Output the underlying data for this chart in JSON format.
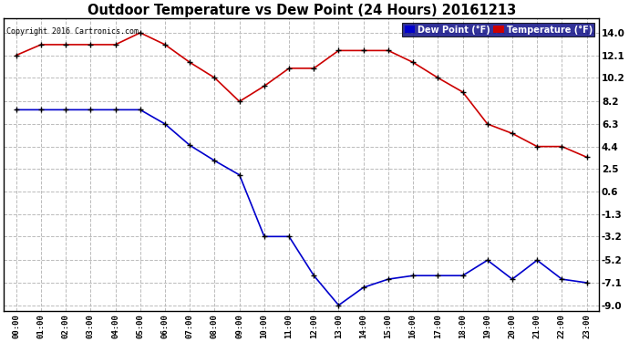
{
  "title": "Outdoor Temperature vs Dew Point (24 Hours) 20161213",
  "copyright": "Copyright 2016 Cartronics.com",
  "x_labels": [
    "00:00",
    "01:00",
    "02:00",
    "03:00",
    "04:00",
    "05:00",
    "06:00",
    "07:00",
    "08:00",
    "09:00",
    "10:00",
    "11:00",
    "12:00",
    "13:00",
    "14:00",
    "15:00",
    "16:00",
    "17:00",
    "18:00",
    "19:00",
    "20:00",
    "21:00",
    "22:00",
    "23:00"
  ],
  "temperature": [
    12.1,
    13.0,
    13.0,
    13.0,
    13.0,
    14.0,
    13.0,
    11.5,
    10.2,
    8.2,
    9.5,
    11.0,
    11.0,
    12.5,
    12.5,
    12.5,
    11.5,
    10.2,
    9.0,
    6.3,
    5.5,
    4.4,
    4.4,
    3.5
  ],
  "dew_point": [
    7.5,
    7.5,
    7.5,
    7.5,
    7.5,
    7.5,
    6.3,
    4.5,
    3.2,
    2.0,
    -3.2,
    -3.2,
    -6.5,
    -9.0,
    -7.5,
    -6.8,
    -6.5,
    -6.5,
    -6.5,
    -5.2,
    -6.8,
    -5.2,
    -6.8,
    -7.1
  ],
  "temp_color": "#cc0000",
  "dew_color": "#0000cc",
  "marker_color": "#000000",
  "bg_color": "#ffffff",
  "grid_color": "#bbbbbb",
  "yticks": [
    14.0,
    12.1,
    10.2,
    8.2,
    6.3,
    4.4,
    2.5,
    0.6,
    -1.3,
    -3.2,
    -5.2,
    -7.1,
    -9.0
  ],
  "ylim": [
    -9.5,
    15.2
  ],
  "legend_dew_label": "Dew Point (°F)",
  "legend_temp_label": "Temperature (°F)"
}
